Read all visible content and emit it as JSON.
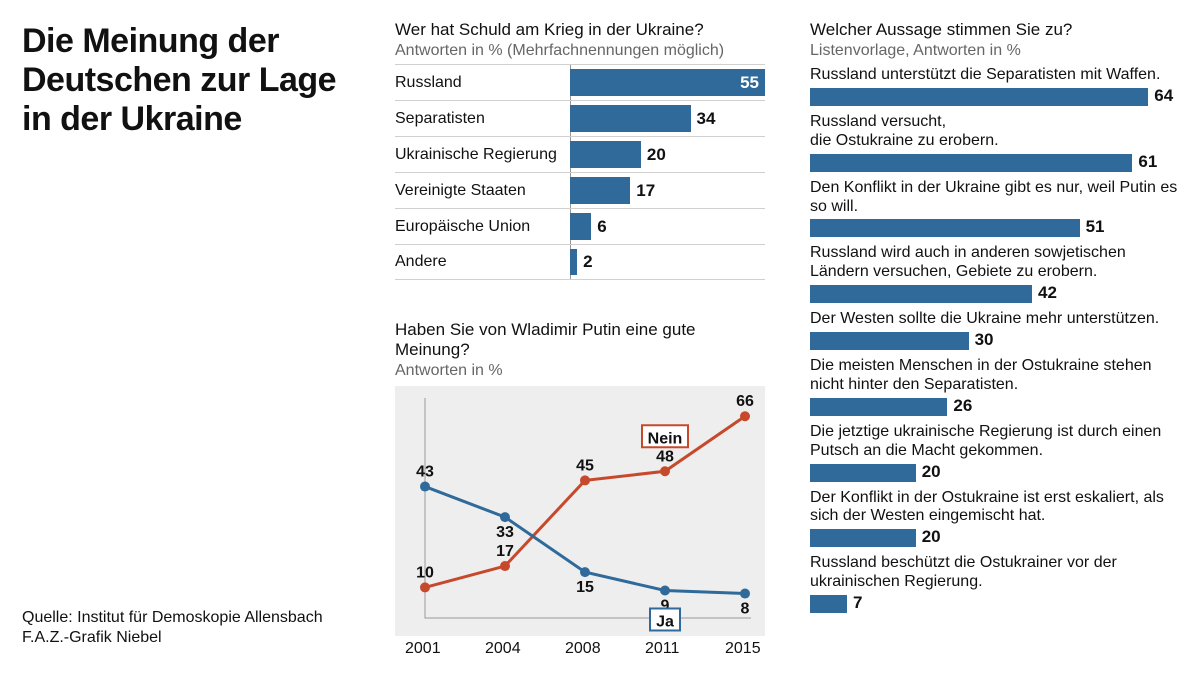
{
  "colors": {
    "bar": "#2f6a9a",
    "line_no": "#c7492c",
    "line_yes": "#2f6a9a",
    "plot_bg": "#eeeeee",
    "text": "#111111",
    "subtext": "#666666",
    "rule": "#d0d0d0"
  },
  "title": "Die Meinung der Deutschen zur Lage in der Ukraine",
  "source_line1": "Quelle: Institut für Demoskopie Allensbach",
  "source_line2": "F.A.Z.-Grafik Niebel",
  "blame": {
    "title": "Wer hat Schuld am Krieg in der Ukraine?",
    "subtitle": "Antworten in % (Mehrfachnennungen möglich)",
    "max": 55,
    "items": [
      {
        "label": "Russland",
        "value": 55
      },
      {
        "label": "Separatisten",
        "value": 34
      },
      {
        "label": "Ukrainische Regierung",
        "value": 20
      },
      {
        "label": "Vereinigte Staaten",
        "value": 17
      },
      {
        "label": "Europäische Union",
        "value": 6
      },
      {
        "label": "Andere",
        "value": 2
      }
    ]
  },
  "putin": {
    "title": "Haben Sie von Wladimir Putin eine gute Meinung?",
    "subtitle": "Antworten in %",
    "years": [
      2001,
      2004,
      2008,
      2011,
      2015
    ],
    "ymin": 0,
    "ymax": 70,
    "series": {
      "nein": {
        "label": "Nein",
        "color": "#c7492c",
        "values": [
          10,
          17,
          45,
          48,
          66
        ]
      },
      "ja": {
        "label": "Ja",
        "color": "#2f6a9a",
        "values": [
          43,
          33,
          15,
          9,
          8
        ]
      }
    }
  },
  "agree": {
    "title": "Welcher Aussage stimmen Sie zu?",
    "subtitle": "Listenvorlage, Antworten in %",
    "max": 70,
    "items": [
      {
        "label": "Russland unterstützt die Separatisten mit Waffen.",
        "value": 64
      },
      {
        "label": "Russland versucht,\ndie Ostukraine zu erobern.",
        "value": 61
      },
      {
        "label": "Den Konflikt in der Ukraine gibt es nur, weil Putin es so will.",
        "value": 51
      },
      {
        "label": "Russland wird auch in anderen sowjetischen Ländern versuchen, Gebiete zu erobern.",
        "value": 42
      },
      {
        "label": "Der Westen sollte die Ukraine mehr unterstützen.",
        "value": 30
      },
      {
        "label": "Die meisten Menschen in der Ostukraine stehen nicht hinter den Separatisten.",
        "value": 26
      },
      {
        "label": "Die jetztige ukrainische Regierung ist durch einen Putsch an die Macht gekommen.",
        "value": 20
      },
      {
        "label": "Der Konflikt in der Ostukraine ist erst eskaliert, als sich der Westen eingemischt hat.",
        "value": 20
      },
      {
        "label": "Russland beschützt die Ostukrainer vor der ukrainischen Regierung.",
        "value": 7
      }
    ]
  }
}
